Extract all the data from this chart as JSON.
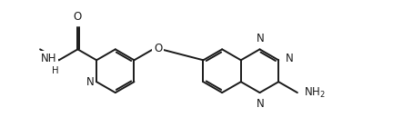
{
  "bg_color": "#ffffff",
  "bond_color": "#1a1a1a",
  "text_color": "#1a1a1a",
  "line_width": 1.4,
  "font_size": 8.5,
  "figsize": [
    4.43,
    1.4
  ],
  "dpi": 100,
  "xlim": [
    -0.8,
    9.2
  ],
  "ylim": [
    -1.6,
    1.8
  ]
}
